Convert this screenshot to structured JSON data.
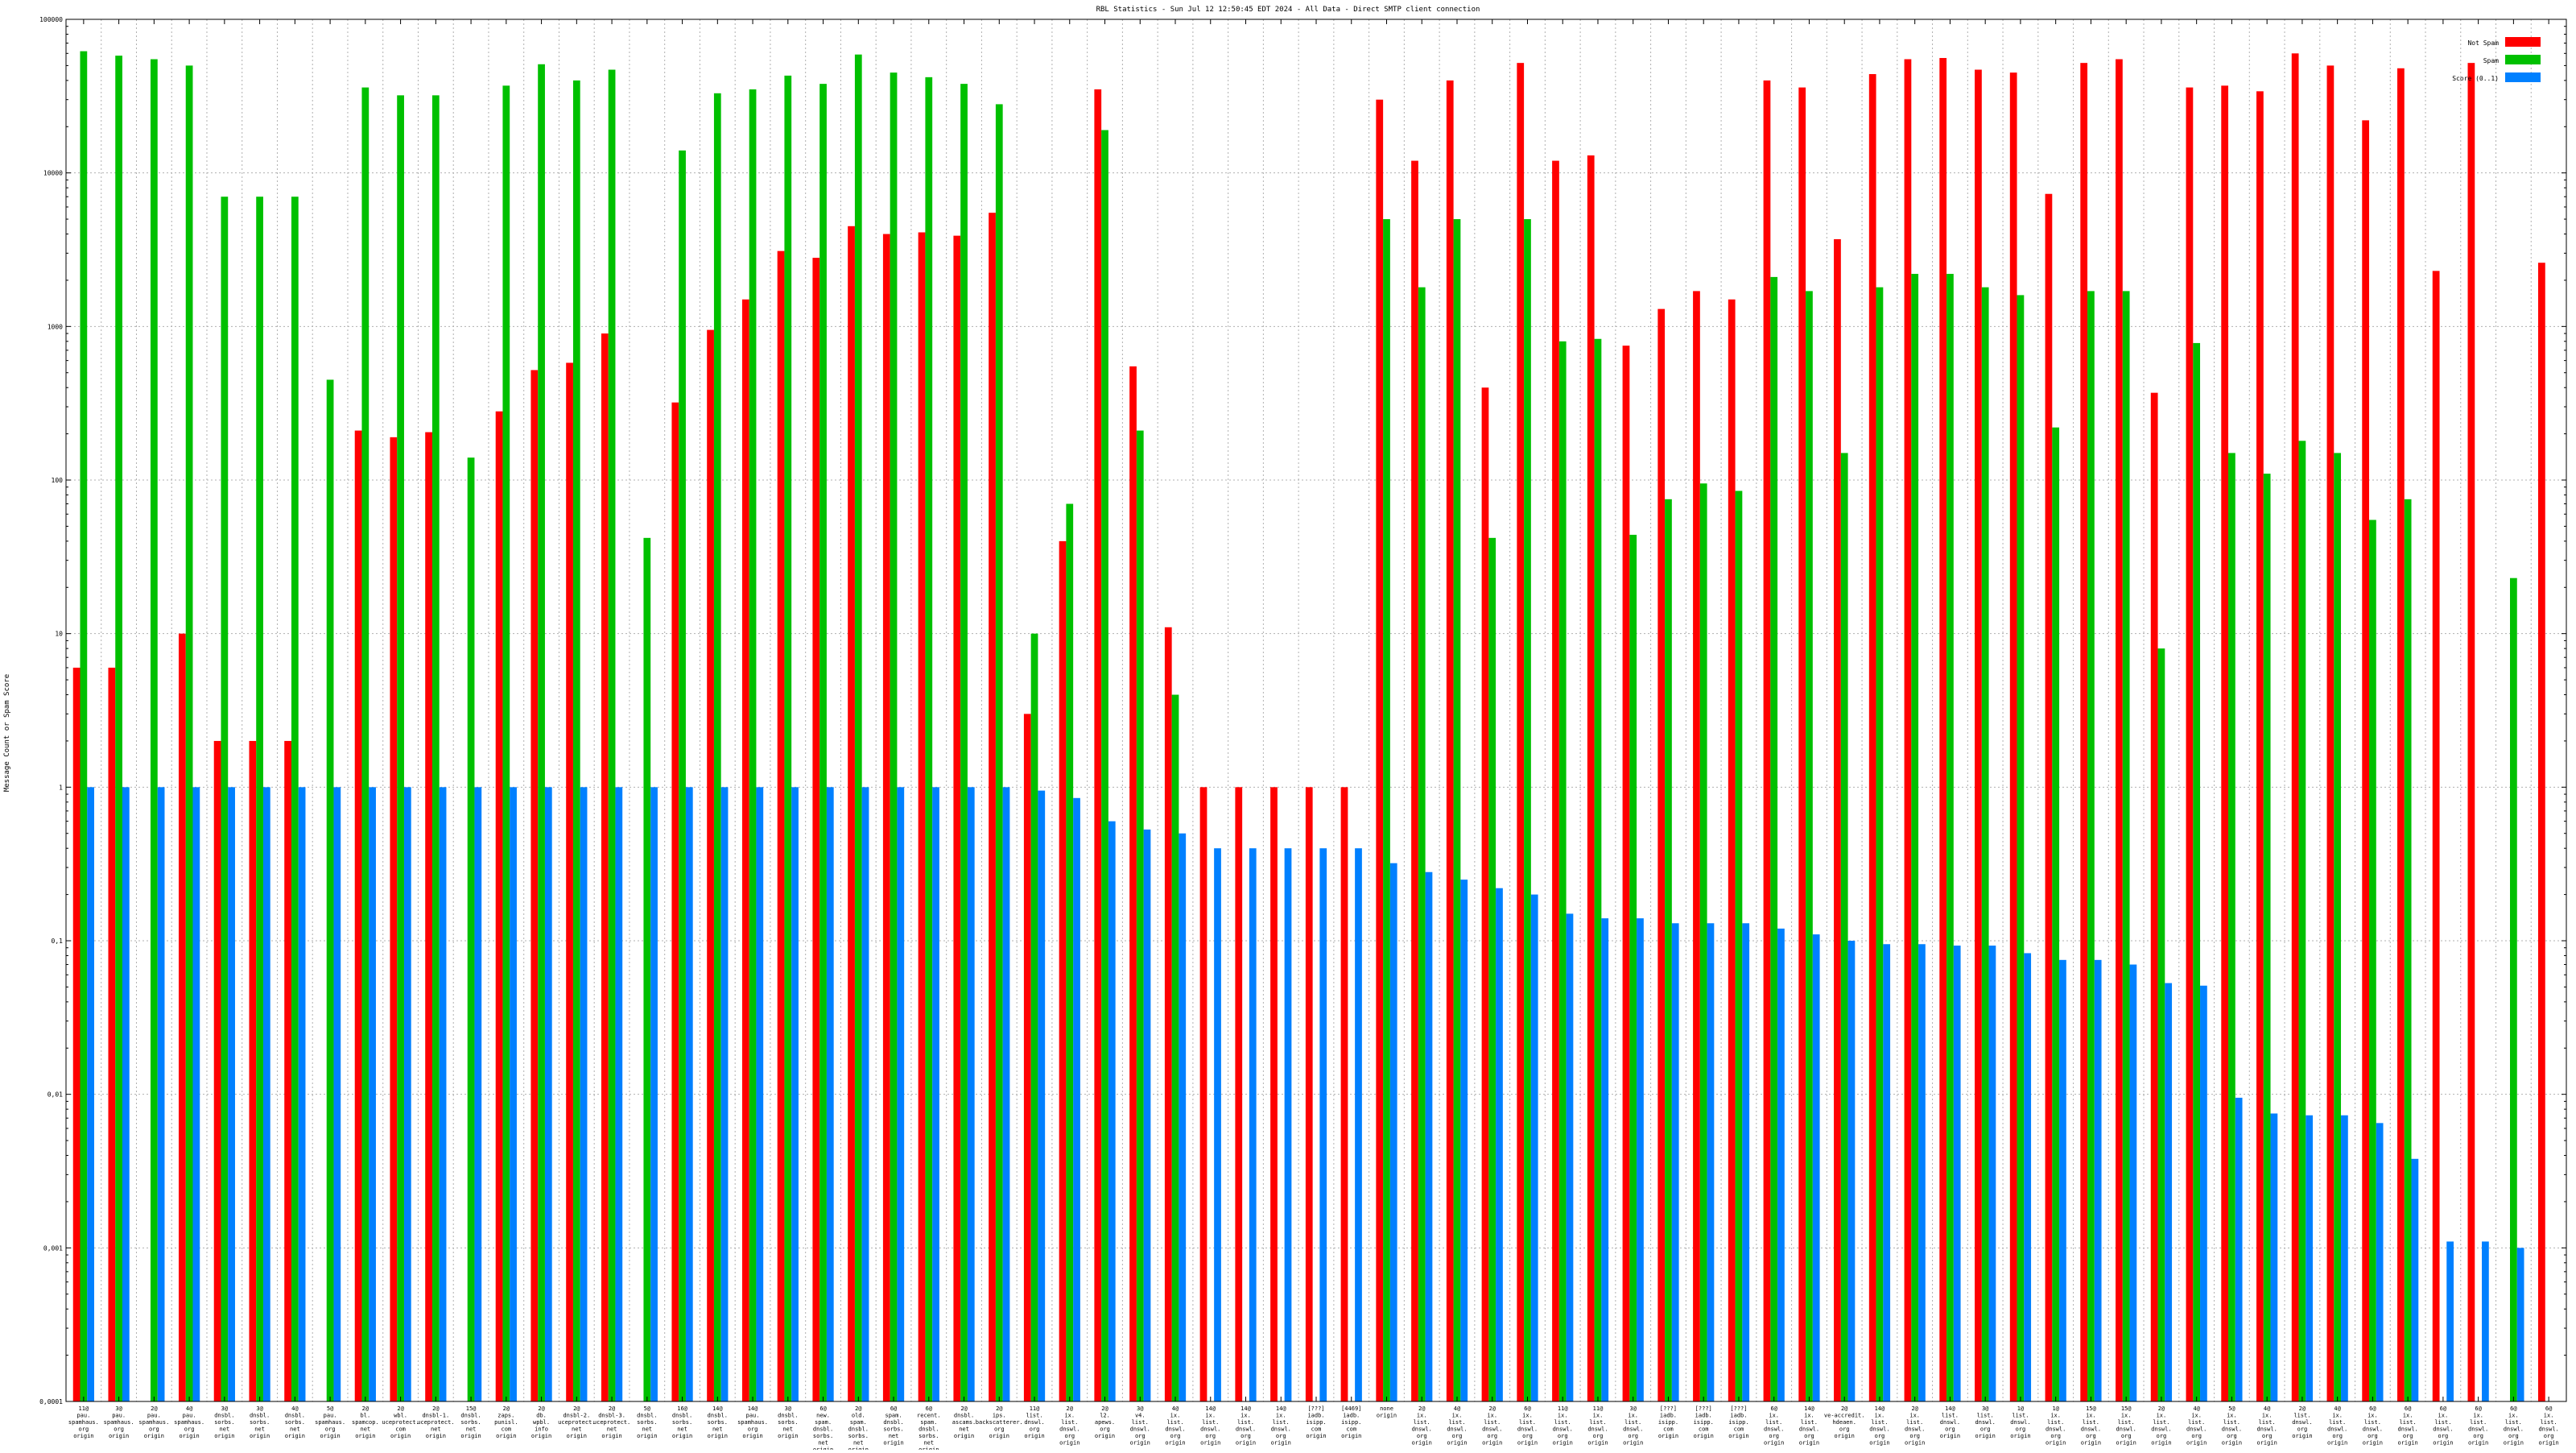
{
  "chart_data": {
    "type": "bar",
    "title": "RBL Statistics - Sun Jul 12 12:50:45 EDT 2024 - All Data - Direct SMTP client connection",
    "ylabel": "Message Count or Spam Score",
    "yscale": "log",
    "ylim": [
      0.0001,
      100000
    ],
    "yticks": [
      "0,0001",
      "0,001",
      "0,01",
      "0,1",
      "1",
      "10",
      "100",
      "1000",
      "10000",
      "100000"
    ],
    "grid": true,
    "legend_position": "top-right",
    "colors": [
      "#ff0000",
      "#00c000",
      "#0080ff"
    ],
    "categories": [
      [
        "11@",
        "pau.",
        "spamhaus.",
        "org",
        "origin"
      ],
      [
        "3@",
        "pau.",
        "spamhaus.",
        "org",
        "origin"
      ],
      [
        "2@",
        "pau.",
        "spamhaus.",
        "org",
        "origin"
      ],
      [
        "4@",
        "pau.",
        "spamhaus.",
        "org",
        "origin"
      ],
      [
        "3@",
        "dnsbl.",
        "sorbs.",
        "net",
        "origin"
      ],
      [
        "3@",
        "dnsbl.",
        "sorbs.",
        "net",
        "origin"
      ],
      [
        "4@",
        "dnsbl.",
        "sorbs.",
        "net",
        "origin"
      ],
      [
        "5@",
        "pau.",
        "spamhaus.",
        "org",
        "origin"
      ],
      [
        "2@",
        "bl.",
        "spamcop.",
        "net",
        "origin"
      ],
      [
        "2@",
        "wbl.",
        "uceprotect.",
        "com",
        "origin"
      ],
      [
        "2@",
        "dnsbl-1.",
        "uceprotect.",
        "net",
        "origin"
      ],
      [
        "15@",
        "dnsbl.",
        "sorbs.",
        "net",
        "origin"
      ],
      [
        "2@",
        "zaps.",
        "punisl.",
        "com",
        "origin"
      ],
      [
        "2@",
        "db.",
        "wpbl.",
        "info",
        "origin"
      ],
      [
        "2@",
        "dnsbl-2.",
        "uceprotect.",
        "net",
        "origin"
      ],
      [
        "2@",
        "dnsbl-3.",
        "uceprotect.",
        "net",
        "origin"
      ],
      [
        "5@",
        "dnsbl.",
        "sorbs.",
        "net",
        "origin"
      ],
      [
        "16@",
        "dnsbl.",
        "sorbs.",
        "net",
        "origin"
      ],
      [
        "14@",
        "dnsbl.",
        "sorbs.",
        "net",
        "origin"
      ],
      [
        "14@",
        "pau.",
        "spamhaus.",
        "org",
        "origin"
      ],
      [
        "3@",
        "dnsbl.",
        "sorbs.",
        "net",
        "origin"
      ],
      [
        "6@",
        "new.",
        "spam.",
        "dnsbl.",
        "sorbs.",
        "net",
        "origin"
      ],
      [
        "2@",
        "old.",
        "spam.",
        "dnsbl.",
        "sorbs.",
        "net",
        "origin"
      ],
      [
        "6@",
        "spam.",
        "dnsbl.",
        "sorbs.",
        "net",
        "origin"
      ],
      [
        "6@",
        "recent.",
        "spam.",
        "dnsbl.",
        "sorbs.",
        "net",
        "origin"
      ],
      [
        "2@",
        "dnsbl.",
        "ascams.",
        "net",
        "origin"
      ],
      [
        "2@",
        "ips.",
        "backscatterer.",
        "org",
        "origin"
      ],
      [
        "11@",
        "list.",
        "dnswl.",
        "org",
        "origin"
      ],
      [
        "2@",
        "ix.",
        "list.",
        "dnswl.",
        "org",
        "origin"
      ],
      [
        "2@",
        "l2.",
        "apews.",
        "org",
        "origin"
      ],
      [
        "3@",
        "v4.",
        "list.",
        "dnswl.",
        "org",
        "origin"
      ],
      [
        "4@",
        "ix.",
        "list.",
        "dnswl.",
        "org",
        "origin"
      ],
      [
        "14@",
        "ix.",
        "list.",
        "dnswl.",
        "org",
        "origin"
      ],
      [
        "14@",
        "ix.",
        "list.",
        "dnswl.",
        "org",
        "origin"
      ],
      [
        "14@",
        "ix.",
        "list.",
        "dnswl.",
        "org",
        "origin"
      ],
      [
        "[???]",
        "iadb.",
        "isipp.",
        "com",
        "origin"
      ],
      [
        "[4469]",
        "iadb.",
        "isipp.",
        "com",
        "origin"
      ],
      [
        "none",
        "origin"
      ],
      [
        "2@",
        "ix.",
        "list.",
        "dnswl.",
        "org",
        "origin"
      ],
      [
        "4@",
        "ix.",
        "list.",
        "dnswl.",
        "org",
        "origin"
      ],
      [
        "2@",
        "ix.",
        "list.",
        "dnswl.",
        "org",
        "origin"
      ],
      [
        "6@",
        "ix.",
        "list.",
        "dnswl.",
        "org",
        "origin"
      ],
      [
        "11@",
        "ix.",
        "list.",
        "dnswl.",
        "org",
        "origin"
      ],
      [
        "11@",
        "ix.",
        "list.",
        "dnswl.",
        "org",
        "origin"
      ],
      [
        "3@",
        "ix.",
        "list.",
        "dnswl.",
        "org",
        "origin"
      ],
      [
        "[???]",
        "iadb.",
        "isipp.",
        "com",
        "origin"
      ],
      [
        "[???]",
        "iadb.",
        "isipp.",
        "com",
        "origin"
      ],
      [
        "[???]",
        "iadb.",
        "isipp.",
        "com",
        "origin"
      ],
      [
        "6@",
        "ix.",
        "list.",
        "dnswl.",
        "org",
        "origin"
      ],
      [
        "14@",
        "ix.",
        "list.",
        "dnswl.",
        "org",
        "origin"
      ],
      [
        "2@",
        "ve-accredit.",
        "hdeaen.",
        "org",
        "origin"
      ],
      [
        "14@",
        "ix.",
        "list.",
        "dnswl.",
        "org",
        "origin"
      ],
      [
        "2@",
        "ix.",
        "list.",
        "dnswl.",
        "org",
        "origin"
      ],
      [
        "14@",
        "list.",
        "dnswl.",
        "org",
        "origin"
      ],
      [
        "3@",
        "list.",
        "dnswl.",
        "org",
        "origin"
      ],
      [
        "1@",
        "list.",
        "dnswl.",
        "org",
        "origin"
      ],
      [
        "1@",
        "ix.",
        "list.",
        "dnswl.",
        "org",
        "origin"
      ],
      [
        "15@",
        "ix.",
        "list.",
        "dnswl.",
        "org",
        "origin"
      ],
      [
        "15@",
        "ix.",
        "list.",
        "dnswl.",
        "org",
        "origin"
      ],
      [
        "2@",
        "ix.",
        "list.",
        "dnswl.",
        "org",
        "origin"
      ],
      [
        "4@",
        "ix.",
        "list.",
        "dnswl.",
        "org",
        "origin"
      ],
      [
        "5@",
        "ix.",
        "list.",
        "dnswl.",
        "org",
        "origin"
      ],
      [
        "4@",
        "ix.",
        "list.",
        "dnswl.",
        "org",
        "origin"
      ],
      [
        "2@",
        "list.",
        "dnswl.",
        "org",
        "origin"
      ],
      [
        "4@",
        "ix.",
        "list.",
        "dnswl.",
        "org",
        "origin"
      ],
      [
        "6@",
        "ix.",
        "list.",
        "dnswl.",
        "org",
        "origin"
      ],
      [
        "6@",
        "ix.",
        "list.",
        "dnswl.",
        "org",
        "origin"
      ],
      [
        "6@",
        "ix.",
        "list.",
        "dnswl.",
        "org",
        "origin"
      ],
      [
        "6@",
        "ix.",
        "list.",
        "dnswl.",
        "org",
        "origin"
      ],
      [
        "6@",
        "ix.",
        "list.",
        "dnswl.",
        "org",
        "origin"
      ],
      [
        "6@",
        "ix.",
        "list.",
        "dnswl.",
        "org",
        "origin"
      ]
    ],
    "series": [
      {
        "name": "Not Spam",
        "values": [
          6,
          6,
          null,
          10,
          2,
          2,
          2,
          null,
          210,
          190,
          205,
          null,
          280,
          520,
          580,
          900,
          null,
          320,
          950,
          1500,
          3100,
          2800,
          4500,
          4000,
          4100,
          3900,
          5500,
          3,
          40,
          35000,
          550,
          11,
          1,
          1,
          1,
          1,
          1,
          30000,
          12000,
          40000,
          400,
          52000,
          12000,
          13000,
          750,
          1300,
          1700,
          1500,
          40000,
          36000,
          3700,
          44000,
          55000,
          56000,
          47000,
          45000,
          7300,
          52000,
          55000,
          370,
          36000,
          37000,
          34000,
          60000,
          50000,
          22000,
          48000,
          2300,
          52000,
          null,
          2600
        ]
      },
      {
        "name": "Spam",
        "values": [
          62000,
          58000,
          55000,
          50000,
          7000,
          7000,
          7000,
          450,
          36000,
          32000,
          32000,
          140,
          37000,
          51000,
          40000,
          47000,
          42,
          14000,
          33000,
          35000,
          43000,
          38000,
          59000,
          45000,
          42000,
          38000,
          28000,
          10,
          70,
          19000,
          210,
          4,
          null,
          null,
          null,
          null,
          null,
          5000,
          1800,
          5000,
          42,
          5000,
          800,
          830,
          44,
          75,
          95,
          85,
          2100,
          1700,
          150,
          1800,
          2200,
          2200,
          1800,
          1600,
          220,
          1700,
          1700,
          8,
          780,
          150,
          110,
          180,
          150,
          55,
          75,
          null,
          null,
          23,
          null
        ]
      },
      {
        "name": "Score (0..1)",
        "values": [
          1,
          1,
          1,
          1,
          1,
          1,
          1,
          1,
          1,
          1,
          1,
          1,
          1,
          1,
          1,
          1,
          1,
          1,
          1,
          1,
          1,
          1,
          1,
          1,
          1,
          1,
          1,
          0.95,
          0.85,
          0.6,
          0.53,
          0.5,
          0.4,
          0.4,
          0.4,
          0.4,
          0.4,
          0.32,
          0.28,
          0.25,
          0.22,
          0.2,
          0.15,
          0.14,
          0.14,
          0.13,
          0.13,
          0.13,
          0.12,
          0.11,
          0.1,
          0.095,
          0.095,
          0.093,
          0.093,
          0.083,
          0.075,
          0.075,
          0.07,
          0.053,
          0.051,
          0.0095,
          0.0075,
          0.0073,
          0.0073,
          0.0065,
          0.0038,
          0.0011,
          0.0011,
          0.001,
          null
        ]
      }
    ]
  }
}
